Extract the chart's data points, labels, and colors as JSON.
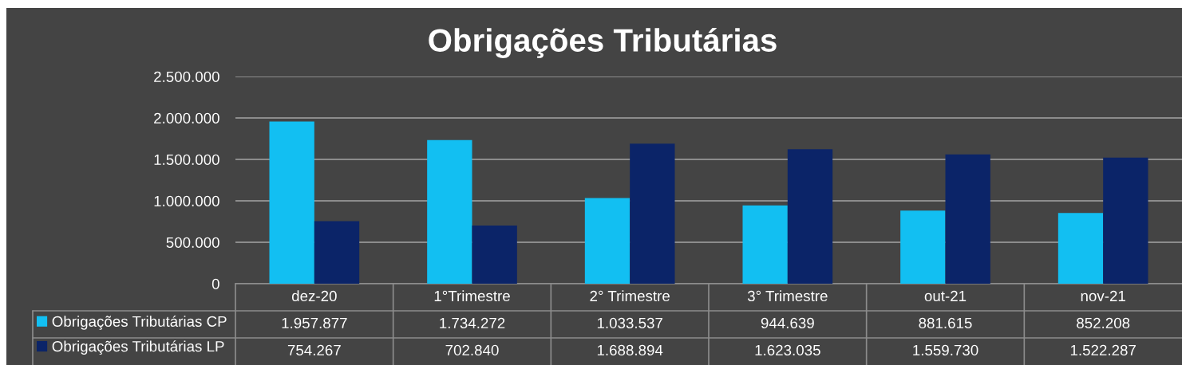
{
  "chart_data": {
    "type": "bar",
    "title": "Obrigações Tributárias",
    "categories": [
      "dez-20",
      "1°Trimestre",
      "2° Trimestre",
      "3° Trimestre",
      "out-21",
      "nov-21"
    ],
    "series": [
      {
        "name": "Obrigações Tributárias CP",
        "color": "#12bff2",
        "values": [
          1957877,
          1734272,
          1033537,
          944639,
          881615,
          852208
        ],
        "value_labels": [
          "1.957.877",
          "1.734.272",
          "1.033.537",
          "944.639",
          "881.615",
          "852.208"
        ]
      },
      {
        "name": "Obrigações Tributárias LP",
        "color": "#0b2468",
        "values": [
          754267,
          702840,
          1688894,
          1623035,
          1559730,
          1522287
        ],
        "value_labels": [
          "754.267",
          "702.840",
          "1.688.894",
          "1.623.035",
          "1.559.730",
          "1.522.287"
        ]
      }
    ],
    "ylim": [
      0,
      2500000
    ],
    "yticks": [
      0,
      {
        "value": 500000,
        "label": "500.000"
      },
      {
        "value": 1000000,
        "label": "1.000.000"
      },
      {
        "value": 1500000,
        "label": "1.500.000"
      },
      {
        "value": 2000000,
        "label": "2.000.000"
      },
      {
        "value": 2500000,
        "label": "2.500.000"
      }
    ],
    "grid": "y",
    "legend": "bottom left"
  }
}
